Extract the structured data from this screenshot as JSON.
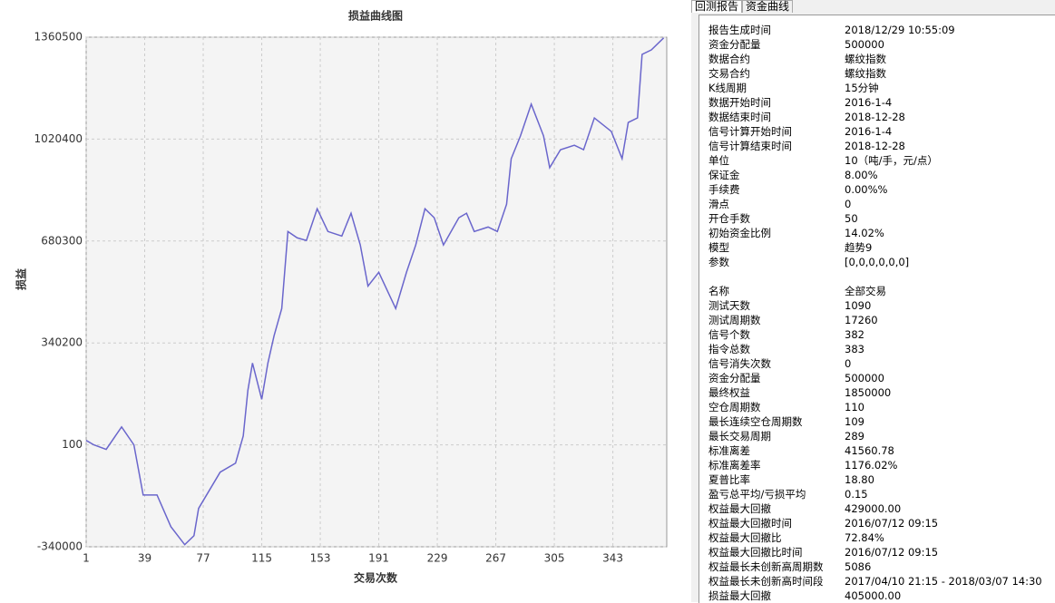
{
  "chart_data": {
    "type": "line",
    "title": "损益曲线图",
    "x_label": "交易次数",
    "y_label": "损益",
    "x": [
      1,
      6,
      14,
      24,
      32,
      38,
      47,
      56,
      65,
      71,
      74,
      88,
      98,
      103,
      106,
      109,
      115,
      119,
      123,
      128,
      132,
      138,
      144,
      151,
      158,
      167,
      173,
      179,
      184,
      191,
      202,
      209,
      215,
      221,
      227,
      233,
      243,
      248,
      253,
      262,
      268,
      274,
      277,
      283,
      290,
      298,
      302,
      309,
      318,
      324,
      331,
      342,
      349,
      353,
      359,
      362,
      368,
      376
    ],
    "values": [
      15000,
      100,
      -15000,
      60000,
      0,
      -167000,
      -167000,
      -273000,
      -333000,
      -303000,
      -212000,
      -91000,
      -61000,
      30000,
      182000,
      273000,
      152000,
      273000,
      364000,
      455000,
      712000,
      691000,
      682000,
      788000,
      712000,
      697000,
      773000,
      667000,
      530000,
      576000,
      455000,
      576000,
      667000,
      788000,
      758000,
      667000,
      758000,
      773000,
      712000,
      727000,
      712000,
      803000,
      955000,
      1031000,
      1137000,
      1031000,
      925000,
      985000,
      1000000,
      985000,
      1091000,
      1046000,
      955000,
      1076000,
      1091000,
      1303000,
      1318000,
      1358000
    ],
    "color": "#6a66cc",
    "xlim": [
      1,
      378
    ],
    "xticks": [
      1,
      39,
      77,
      115,
      153,
      191,
      229,
      267,
      305,
      343
    ],
    "ylim": [
      -340000,
      1360500
    ],
    "yticks": [
      -340000,
      100,
      340200,
      680300,
      1020400,
      1360500
    ],
    "grid": true
  },
  "report": {
    "tabs": [
      "回测报告",
      "资金曲线"
    ],
    "sections": [
      [
        [
          "报告生成时间",
          "2018/12/29 10:55:09"
        ],
        [
          "资金分配量",
          "500000"
        ],
        [
          "数据合约",
          "螺纹指数"
        ],
        [
          "交易合约",
          "螺纹指数"
        ],
        [
          "K线周期",
          "15分钟"
        ],
        [
          "数据开始时间",
          "2016-1-4"
        ],
        [
          "数据结束时间",
          "2018-12-28"
        ],
        [
          "信号计算开始时间",
          "2016-1-4"
        ],
        [
          "信号计算结束时间",
          "2018-12-28"
        ],
        [
          "单位",
          "10（吨/手，元/点）"
        ],
        [
          "保证金",
          "8.00%"
        ],
        [
          "手续费",
          "0.00%%"
        ],
        [
          "滑点",
          "0"
        ],
        [
          "开仓手数",
          "50"
        ],
        [
          "初始资金比例",
          "14.02%"
        ],
        [
          "模型",
          "趋势9"
        ],
        [
          "参数",
          "[0,0,0,0,0,0]"
        ]
      ],
      [
        [
          "名称",
          "全部交易"
        ],
        [
          "测试天数",
          "1090"
        ],
        [
          "测试周期数",
          "17260"
        ],
        [
          "信号个数",
          "382"
        ],
        [
          "指令总数",
          "383"
        ],
        [
          "信号消失次数",
          "0"
        ],
        [
          "资金分配量",
          "500000"
        ],
        [
          "最终权益",
          "1850000"
        ],
        [
          "空仓周期数",
          "110"
        ],
        [
          "最长连续空仓周期数",
          "109"
        ],
        [
          "最长交易周期",
          "289"
        ],
        [
          "标准离差",
          "41560.78"
        ],
        [
          "标准离差率",
          "1176.02%"
        ],
        [
          "夏普比率",
          "18.80"
        ],
        [
          "盈亏总平均/亏损平均",
          "0.15"
        ],
        [
          "权益最大回撤",
          "429000.00"
        ],
        [
          "权益最大回撤时间",
          "2016/07/12 09:15"
        ],
        [
          "权益最大回撤比",
          "72.84%"
        ],
        [
          "权益最大回撤比时间",
          "2016/07/12 09:15"
        ],
        [
          "权益最长未创新高周期数",
          "5086"
        ],
        [
          "权益最长未创新高时间段",
          "2017/04/10 21:15 - 2018/03/07 14:30"
        ],
        [
          "损益最大回撤",
          "405000.00"
        ]
      ]
    ]
  }
}
